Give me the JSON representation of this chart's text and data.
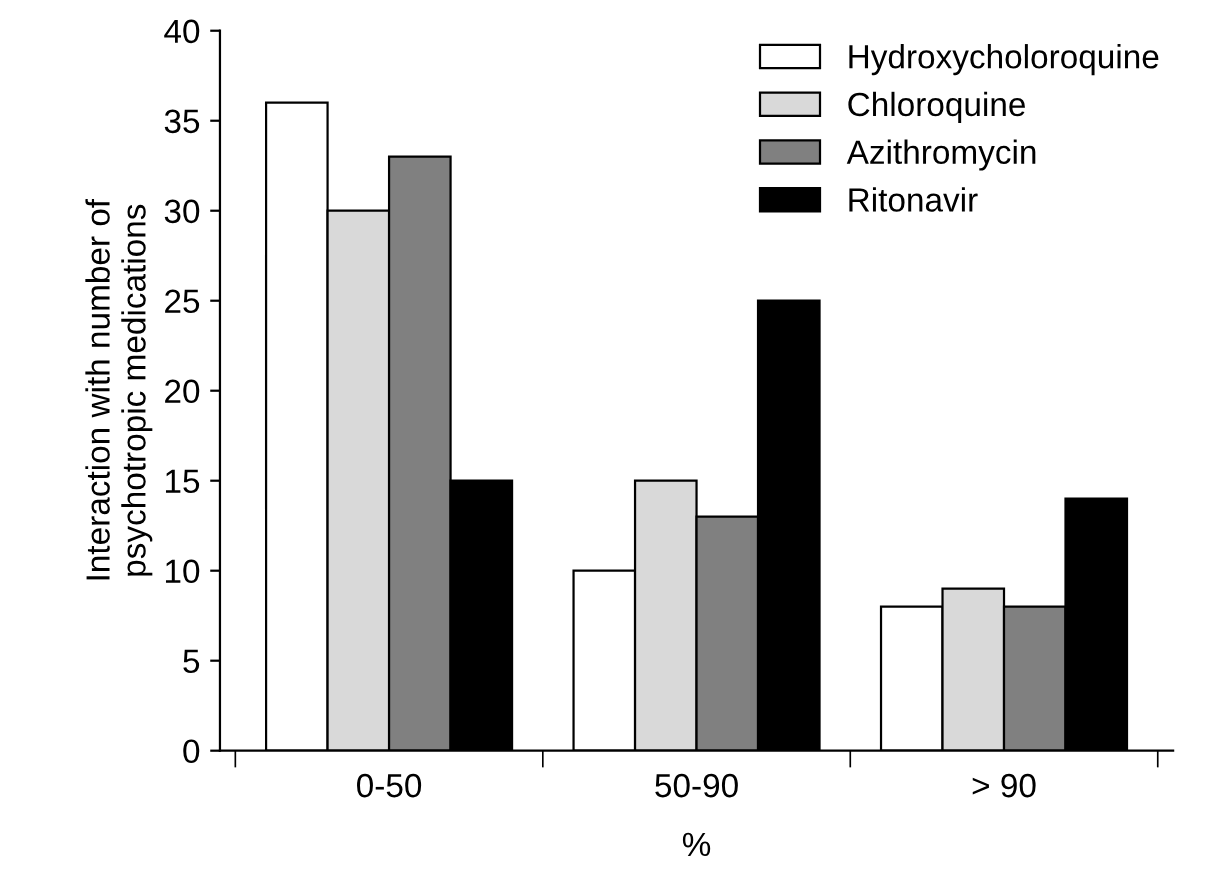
{
  "chart_data": {
    "type": "bar",
    "xlabel": "%",
    "ylabel": "Interaction with number of\npsychotropic medications",
    "categories": [
      "0-50",
      "50-90",
      "> 90"
    ],
    "series": [
      {
        "name": "Hydroxycholoroquine",
        "color": "#ffffff",
        "values": [
          36,
          10,
          8
        ]
      },
      {
        "name": "Chloroquine",
        "color": "#d9d9d9",
        "values": [
          30,
          15,
          9
        ]
      },
      {
        "name": "Azithromycin",
        "color": "#808080",
        "values": [
          33,
          13,
          8
        ]
      },
      {
        "name": "Ritonavir",
        "color": "#000000",
        "values": [
          15,
          25,
          14
        ]
      }
    ],
    "ylim": [
      0,
      40
    ],
    "yticks": [
      0,
      5,
      10,
      15,
      20,
      25,
      30,
      35,
      40
    ],
    "grid": false,
    "legend": "top right"
  }
}
